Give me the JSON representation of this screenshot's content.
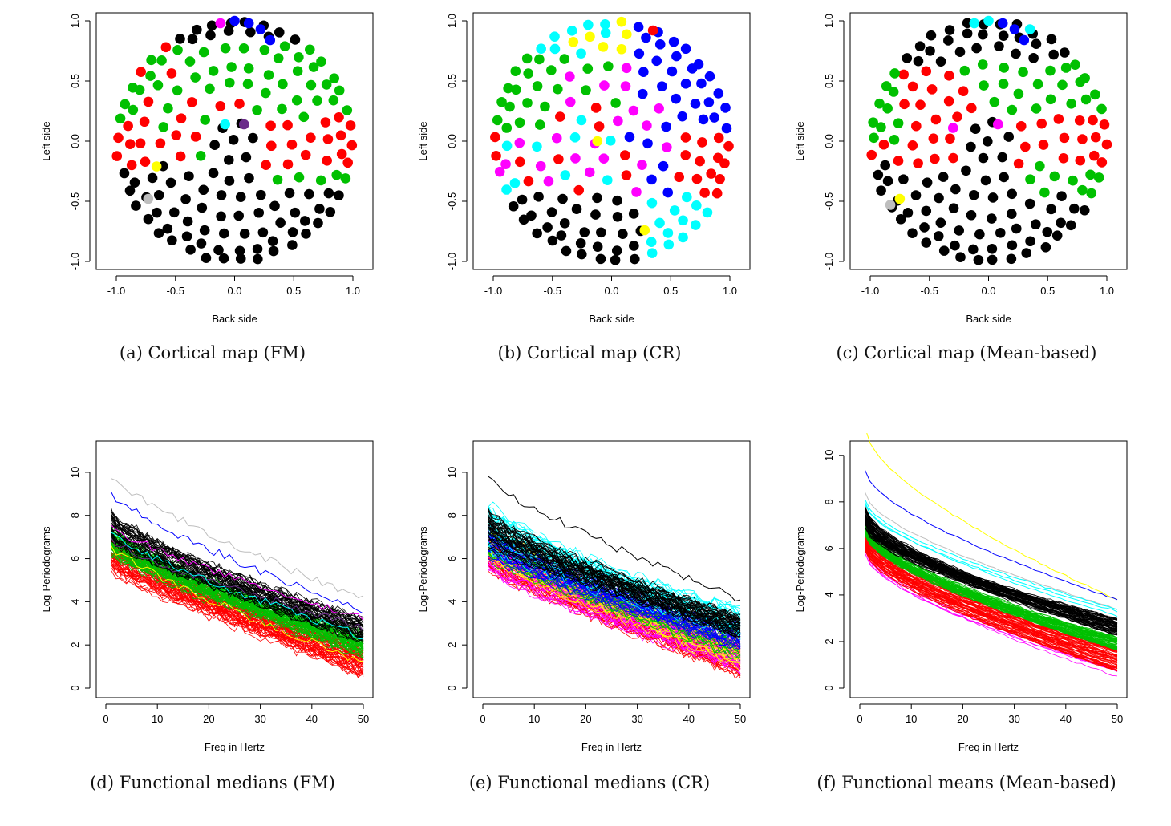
{
  "chart_data": [
    {
      "type": "scatter",
      "panel_id": "a",
      "caption": "(a)  Cortical map (FM)",
      "xlabel": "Back side",
      "ylabel": "Left side",
      "xlim": [
        -1.0,
        1.0
      ],
      "ylim": [
        -1.0,
        1.0
      ],
      "xticks": [
        "-1.0",
        "-0.5",
        "0.0",
        "0.5",
        "1.0"
      ],
      "yticks": [
        "-1.0",
        "-0.5",
        "0.0",
        "0.5",
        "1.0"
      ],
      "scheme": "fm",
      "highlights": [
        {
          "x": -0.12,
          "y": 0.98,
          "color": "#ff00ff"
        },
        {
          "x": 0.0,
          "y": 1.0,
          "color": "#0000ff"
        },
        {
          "x": 0.12,
          "y": 0.98,
          "color": "#0000ff"
        },
        {
          "x": 0.22,
          "y": 0.93,
          "color": "#0000ff"
        },
        {
          "x": 0.3,
          "y": 0.84,
          "color": "#0000ff"
        },
        {
          "x": -0.08,
          "y": 0.14,
          "color": "#00ffff"
        },
        {
          "x": 0.08,
          "y": 0.14,
          "color": "#6a2c8a"
        },
        {
          "x": -0.66,
          "y": -0.21,
          "color": "#ffff00"
        },
        {
          "x": -0.73,
          "y": -0.48,
          "color": "#bebebe"
        }
      ]
    },
    {
      "type": "scatter",
      "panel_id": "b",
      "caption": "(b)  Cortical map (CR)",
      "xlabel": "Back side",
      "ylabel": "Left side",
      "xlim": [
        -1.0,
        1.0
      ],
      "ylim": [
        -1.0,
        1.0
      ],
      "xticks": [
        "-1.0",
        "-0.5",
        "0.0",
        "0.5",
        "1.0"
      ],
      "yticks": [
        "-1.0",
        "-0.5",
        "0.0",
        "0.5",
        "1.0"
      ],
      "scheme": "cr",
      "highlights": [
        {
          "x": 0.35,
          "y": 0.92,
          "color": "#ff0000"
        },
        {
          "x": -0.12,
          "y": 0.0,
          "color": "#ffff00"
        },
        {
          "x": 0.28,
          "y": -0.74,
          "color": "#ffff00"
        }
      ]
    },
    {
      "type": "scatter",
      "panel_id": "c",
      "caption": "(c)  Cortical map (Mean-based)",
      "xlabel": "Back side",
      "ylabel": "Left side",
      "xlim": [
        -1.0,
        1.0
      ],
      "ylim": [
        -1.0,
        1.0
      ],
      "xticks": [
        "-1.0",
        "-0.5",
        "0.0",
        "0.5",
        "1.0"
      ],
      "yticks": [
        "-1.0",
        "-0.5",
        "0.0",
        "0.5",
        "1.0"
      ],
      "scheme": "mean",
      "highlights": [
        {
          "x": -0.12,
          "y": 0.98,
          "color": "#00ffff"
        },
        {
          "x": 0.0,
          "y": 1.0,
          "color": "#00ffff"
        },
        {
          "x": 0.12,
          "y": 0.98,
          "color": "#0000ff"
        },
        {
          "x": 0.22,
          "y": 0.93,
          "color": "#0000ff"
        },
        {
          "x": 0.3,
          "y": 0.84,
          "color": "#0000ff"
        },
        {
          "x": 0.35,
          "y": 0.93,
          "color": "#00ffff"
        },
        {
          "x": -0.3,
          "y": 0.11,
          "color": "#ff00ff"
        },
        {
          "x": 0.08,
          "y": 0.14,
          "color": "#ff00ff"
        },
        {
          "x": -0.75,
          "y": -0.48,
          "color": "#ffff00"
        },
        {
          "x": -0.83,
          "y": -0.53,
          "color": "#bebebe"
        }
      ]
    },
    {
      "type": "line",
      "panel_id": "d",
      "caption": "(d)  Functional medians (FM)",
      "xlabel": "Freq in Hertz",
      "ylabel": "Log-Periodograms",
      "xlim": [
        0,
        50
      ],
      "ylim": [
        0,
        11
      ],
      "xticks": [
        "0",
        "10",
        "20",
        "30",
        "40",
        "50"
      ],
      "yticks": [
        "0",
        "2",
        "4",
        "6",
        "8",
        "10"
      ],
      "mode": "median",
      "groups": [
        {
          "name": "black",
          "color": "#000000",
          "count": 40,
          "start": [
            6.9,
            8.1
          ],
          "end": [
            2.2,
            3.2
          ]
        },
        {
          "name": "green",
          "color": "#00c000",
          "count": 55,
          "start": [
            6.2,
            7.4
          ],
          "end": [
            1.5,
            2.5
          ]
        },
        {
          "name": "red",
          "color": "#ff0000",
          "count": 55,
          "start": [
            5.5,
            7.0
          ],
          "end": [
            0.6,
            2.0
          ]
        }
      ],
      "singles": [
        {
          "color": "#bebebe",
          "start": 9.8,
          "end": 4.1
        },
        {
          "color": "#0000ff",
          "start": 9.0,
          "end": 3.5
        },
        {
          "color": "#ff00ff",
          "start": 7.5,
          "end": 3.2
        },
        {
          "color": "#6a2c8a",
          "start": 6.9,
          "end": 2.8
        },
        {
          "color": "#00ffff",
          "start": 7.2,
          "end": 2.4
        },
        {
          "color": "#ffff00",
          "start": 6.6,
          "end": 1.2
        }
      ]
    },
    {
      "type": "line",
      "panel_id": "e",
      "caption": "(e)  Functional medians (CR)",
      "xlabel": "Freq in Hertz",
      "ylabel": "Log-Periodograms",
      "xlim": [
        0,
        50
      ],
      "ylim": [
        0,
        11
      ],
      "xticks": [
        "0",
        "10",
        "20",
        "30",
        "40",
        "50"
      ],
      "yticks": [
        "0",
        "2",
        "4",
        "6",
        "8",
        "10"
      ],
      "mode": "median",
      "groups": [
        {
          "name": "black",
          "color": "#000000",
          "count": 40,
          "start": [
            6.6,
            8.2
          ],
          "end": [
            2.4,
            3.3
          ]
        },
        {
          "name": "cyan",
          "color": "#00ffff",
          "count": 25,
          "start": [
            6.5,
            8.8
          ],
          "end": [
            2.4,
            3.6
          ]
        },
        {
          "name": "blue",
          "color": "#0000ff",
          "count": 30,
          "start": [
            6.2,
            7.6
          ],
          "end": [
            1.8,
            2.8
          ]
        },
        {
          "name": "green",
          "color": "#00c000",
          "count": 15,
          "start": [
            6.0,
            7.5
          ],
          "end": [
            1.2,
            2.4
          ]
        },
        {
          "name": "yellow",
          "color": "#ffff00",
          "count": 15,
          "start": [
            6.0,
            7.8
          ],
          "end": [
            1.0,
            2.2
          ]
        },
        {
          "name": "magenta",
          "color": "#ff00ff",
          "count": 30,
          "start": [
            5.6,
            7.2
          ],
          "end": [
            0.8,
            2.1
          ]
        },
        {
          "name": "red",
          "color": "#ff0000",
          "count": 45,
          "start": [
            5.6,
            7.0
          ],
          "end": [
            0.6,
            2.0
          ]
        }
      ],
      "singles": [
        {
          "color": "#000000",
          "start": 9.8,
          "end": 4.1
        }
      ]
    },
    {
      "type": "line",
      "panel_id": "f",
      "caption": "(f)  Functional means (Mean-based)",
      "xlabel": "Freq in Hertz",
      "ylabel": "Log-Periodograms",
      "xlim": [
        0,
        50
      ],
      "ylim": [
        0,
        10.2
      ],
      "xticks": [
        "0",
        "10",
        "20",
        "30",
        "40",
        "50"
      ],
      "yticks": [
        "0",
        "2",
        "4",
        "6",
        "8",
        "10"
      ],
      "mode": "mean",
      "groups": [
        {
          "name": "black",
          "color": "#000000",
          "count": 60,
          "start": [
            6.9,
            7.8
          ],
          "end": [
            2.2,
            3.0
          ]
        },
        {
          "name": "green",
          "color": "#00c000",
          "count": 50,
          "start": [
            6.6,
            7.1
          ],
          "end": [
            1.6,
            2.2
          ]
        },
        {
          "name": "red",
          "color": "#ff0000",
          "count": 55,
          "start": [
            5.9,
            7.0
          ],
          "end": [
            0.7,
            1.7
          ]
        },
        {
          "name": "magenta",
          "color": "#ff00ff",
          "count": 5,
          "start": [
            5.6,
            6.1
          ],
          "end": [
            0.5,
            0.9
          ]
        }
      ],
      "singles": [
        {
          "color": "#ffff00",
          "start": 11.2,
          "end": 3.8
        },
        {
          "color": "#0000ff",
          "start": 9.4,
          "end": 3.8
        },
        {
          "color": "#bebebe",
          "start": 8.4,
          "end": 3.4
        },
        {
          "color": "#00ffff",
          "start": 8.1,
          "end": 3.4
        },
        {
          "color": "#00ffff",
          "start": 8.0,
          "end": 3.1
        },
        {
          "color": "#00ffff",
          "start": 7.9,
          "end": 3.3
        }
      ]
    }
  ]
}
